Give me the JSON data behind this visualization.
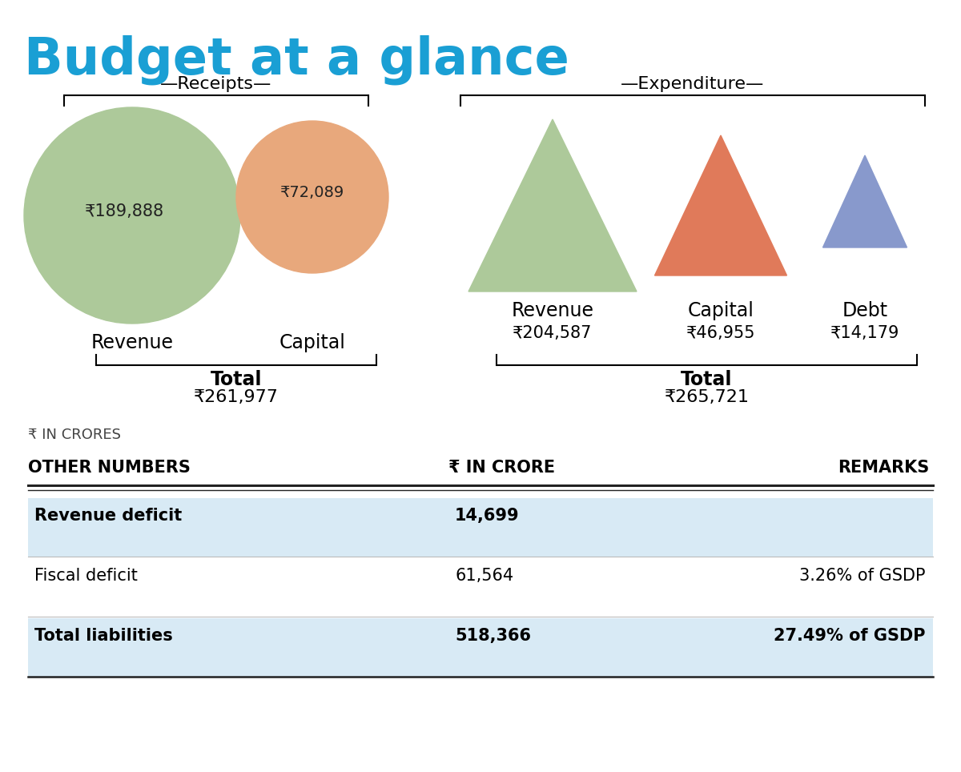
{
  "title": "Budget at a glance",
  "title_color": "#1a9fd4",
  "bg_color": "#ffffff",
  "receipts_label": "—Receipts—",
  "expenditure_label": "—Expenditure—",
  "revenue_receipt_value": "₹189,888",
  "capital_receipt_value": "₹72,089",
  "revenue_receipt_label": "Revenue",
  "capital_receipt_label": "Capital",
  "receipts_total_label": "Total",
  "receipts_total_value": "₹261,977",
  "in_crores_label": "₹ IN CRORES",
  "rev_circle_color": "#adc99a",
  "cap_circle_color": "#e8a87c",
  "rev_tri_color": "#adc99a",
  "cap_tri_color": "#e07a5a",
  "debt_tri_color": "#8899cc",
  "revenue_exp_label": "Revenue",
  "capital_exp_label": "Capital",
  "debt_exp_label": "Debt",
  "revenue_exp_value": "₹204,587",
  "capital_exp_value": "₹46,955",
  "debt_exp_value": "₹14,179",
  "exp_total_label": "Total",
  "exp_total_value": "₹265,721",
  "table_header_col1": "OTHER NUMBERS",
  "table_header_col2": "₹ IN CRORE",
  "table_header_col3": "REMARKS",
  "table_rows": [
    {
      "col1": "Revenue deficit",
      "col2": "14,699",
      "col3": "",
      "bold": true,
      "shaded": true
    },
    {
      "col1": "Fiscal deficit",
      "col2": "61,564",
      "col3": "3.26% of GSDP",
      "bold": false,
      "shaded": false
    },
    {
      "col1": "Total liabilities",
      "col2": "518,366",
      "col3": "27.49% of GSDP",
      "bold": true,
      "shaded": true
    }
  ],
  "table_shade_color": "#d8eaf5",
  "table_line_color": "#222222",
  "fig_width": 12.0,
  "fig_height": 9.64,
  "dpi": 100
}
